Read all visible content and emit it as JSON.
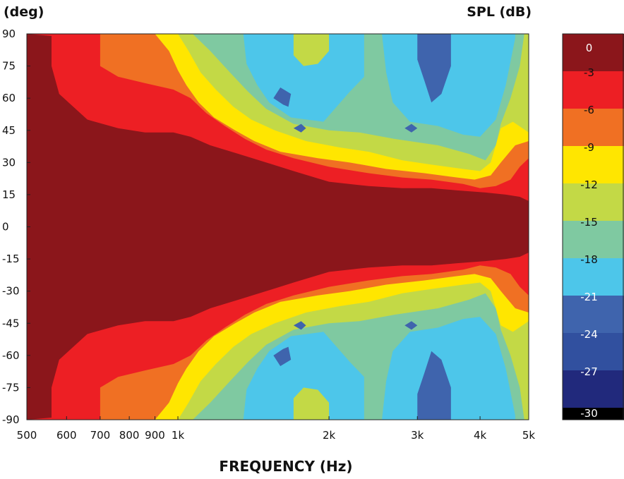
{
  "chart_data": {
    "type": "heatmap",
    "subtype": "polar-directivity-contour",
    "xlabel": "FREQUENCY (Hz)",
    "ylabel": "(deg)",
    "colorbar_title": "SPL (dB)",
    "x_scale": "log",
    "x_range_hz": [
      500,
      5000
    ],
    "x_ticks": [
      {
        "value": 500,
        "label": "500"
      },
      {
        "value": 600,
        "label": "600"
      },
      {
        "value": 700,
        "label": "700"
      },
      {
        "value": 800,
        "label": "800"
      },
      {
        "value": 900,
        "label": "900"
      },
      {
        "value": 1000,
        "label": "1k"
      },
      {
        "value": 2000,
        "label": "2k"
      },
      {
        "value": 3000,
        "label": "3k"
      },
      {
        "value": 4000,
        "label": "4k"
      },
      {
        "value": 5000,
        "label": "5k"
      }
    ],
    "y_range_deg": [
      -90,
      90
    ],
    "y_ticks": [
      {
        "value": 90,
        "label": "90"
      },
      {
        "value": 75,
        "label": "75"
      },
      {
        "value": 60,
        "label": "60"
      },
      {
        "value": 45,
        "label": "45"
      },
      {
        "value": 30,
        "label": "30"
      },
      {
        "value": 15,
        "label": "15"
      },
      {
        "value": 0,
        "label": "0"
      },
      {
        "value": -15,
        "label": "-15"
      },
      {
        "value": -30,
        "label": "-30"
      },
      {
        "value": -45,
        "label": "-45"
      },
      {
        "value": -60,
        "label": "-60"
      },
      {
        "value": -75,
        "label": "-75"
      },
      {
        "value": -90,
        "label": "-90"
      }
    ],
    "levels": [
      {
        "label": "0",
        "color": "#8b161b"
      },
      {
        "label": "-3",
        "color": "#ed1f24"
      },
      {
        "label": "-6",
        "color": "#f07023"
      },
      {
        "label": "-9",
        "color": "#ffe600"
      },
      {
        "label": "-12",
        "color": "#c3d946"
      },
      {
        "label": "-15",
        "color": "#7fc9a1"
      },
      {
        "label": "-18",
        "color": "#4dc6ea"
      },
      {
        "label": "-21",
        "color": "#3f64ad"
      },
      {
        "label": "-24",
        "color": "#31509f"
      },
      {
        "label": "-27",
        "color": "#21297c"
      },
      {
        "label": "-30",
        "color": "#000000"
      }
    ],
    "contours": [
      {
        "level": "-3",
        "points": [
          [
            500,
            90
          ],
          [
            560,
            89
          ],
          [
            560,
            75
          ],
          [
            580,
            62
          ],
          [
            660,
            50
          ],
          [
            760,
            46
          ],
          [
            860,
            44
          ],
          [
            980,
            44
          ],
          [
            1060,
            42
          ],
          [
            1160,
            38
          ],
          [
            1320,
            34
          ],
          [
            1500,
            30
          ],
          [
            1700,
            26
          ],
          [
            2000,
            21
          ],
          [
            2400,
            19
          ],
          [
            2800,
            18
          ],
          [
            3200,
            18
          ],
          [
            3600,
            17
          ],
          [
            4100,
            16
          ],
          [
            4500,
            15
          ],
          [
            4800,
            14
          ],
          [
            5000,
            12
          ]
        ]
      },
      {
        "level": "-6",
        "points": [
          [
            700,
            90
          ],
          [
            700,
            75
          ],
          [
            760,
            70
          ],
          [
            860,
            67
          ],
          [
            980,
            64
          ],
          [
            1060,
            60
          ],
          [
            1140,
            53
          ],
          [
            1240,
            47
          ],
          [
            1360,
            41
          ],
          [
            1500,
            36
          ],
          [
            1700,
            32
          ],
          [
            2000,
            28
          ],
          [
            2400,
            25
          ],
          [
            2800,
            23
          ],
          [
            3200,
            22
          ],
          [
            3700,
            20
          ],
          [
            4000,
            18
          ],
          [
            4300,
            19
          ],
          [
            4600,
            22
          ],
          [
            4800,
            28
          ],
          [
            5000,
            32
          ]
        ]
      },
      {
        "level": "-9",
        "points": [
          [
            900,
            90
          ],
          [
            960,
            82
          ],
          [
            1000,
            73
          ],
          [
            1040,
            66
          ],
          [
            1100,
            58
          ],
          [
            1180,
            51
          ],
          [
            1300,
            45
          ],
          [
            1420,
            40
          ],
          [
            1600,
            35
          ],
          [
            1900,
            32
          ],
          [
            2200,
            30
          ],
          [
            2600,
            27
          ],
          [
            3100,
            25
          ],
          [
            3600,
            23
          ],
          [
            3900,
            22
          ],
          [
            4200,
            24
          ],
          [
            4400,
            30
          ],
          [
            4700,
            38
          ],
          [
            5000,
            40
          ]
        ]
      },
      {
        "level": "-12",
        "points": [
          [
            1000,
            90
          ],
          [
            1050,
            82
          ],
          [
            1110,
            72
          ],
          [
            1190,
            64
          ],
          [
            1290,
            56
          ],
          [
            1400,
            50
          ],
          [
            1560,
            45
          ],
          [
            1800,
            40
          ],
          [
            2100,
            37
          ],
          [
            2400,
            35
          ],
          [
            2800,
            31
          ],
          [
            3200,
            29
          ],
          [
            3700,
            27
          ],
          [
            4000,
            26
          ],
          [
            4200,
            30
          ],
          [
            4400,
            46
          ],
          [
            4650,
            49
          ],
          [
            5000,
            44
          ]
        ]
      },
      {
        "level": "-15",
        "points": [
          [
            1070,
            90
          ],
          [
            1160,
            82
          ],
          [
            1270,
            72
          ],
          [
            1380,
            63
          ],
          [
            1500,
            55
          ],
          [
            1700,
            48
          ],
          [
            2000,
            45
          ],
          [
            2300,
            44
          ],
          [
            2700,
            41
          ],
          [
            3300,
            38
          ],
          [
            3800,
            34
          ],
          [
            4100,
            31
          ],
          [
            4300,
            38
          ],
          [
            4400,
            48
          ],
          [
            4600,
            60
          ],
          [
            4800,
            75
          ],
          [
            4900,
            90
          ]
        ]
      },
      {
        "level": "-18",
        "points": [
          [
            1350,
            90
          ],
          [
            1370,
            76
          ],
          [
            1440,
            66
          ],
          [
            1520,
            58
          ],
          [
            1680,
            51
          ],
          [
            1950,
            49
          ],
          [
            2200,
            63
          ],
          [
            2350,
            70
          ],
          [
            2350,
            90
          ],
          [
            2550,
            90
          ],
          [
            2600,
            72
          ],
          [
            2680,
            58
          ],
          [
            2900,
            49
          ],
          [
            3300,
            47
          ],
          [
            3700,
            43
          ],
          [
            4000,
            42
          ],
          [
            4300,
            50
          ],
          [
            4500,
            66
          ],
          [
            4700,
            88
          ],
          [
            4700,
            90
          ]
        ]
      },
      {
        "level": "-21",
        "points": [
          [
            3000,
            90
          ],
          [
            3000,
            78
          ],
          [
            3100,
            68
          ],
          [
            3200,
            58
          ],
          [
            3350,
            62
          ],
          [
            3500,
            75
          ],
          [
            3500,
            90
          ]
        ]
      }
    ],
    "islands": [
      {
        "level": "-12",
        "points": [
          [
            1700,
            90
          ],
          [
            1700,
            80
          ],
          [
            1780,
            75
          ],
          [
            1900,
            76
          ],
          [
            2000,
            82
          ],
          [
            2000,
            90
          ]
        ]
      },
      {
        "level": "-21",
        "points": [
          [
            1550,
            60
          ],
          [
            1600,
            65
          ],
          [
            1680,
            62
          ],
          [
            1660,
            56
          ],
          [
            1620,
            57
          ]
        ]
      },
      {
        "level": "-21",
        "points": [
          [
            1700,
            46
          ],
          [
            1760,
            48
          ],
          [
            1800,
            46
          ],
          [
            1760,
            44
          ]
        ]
      },
      {
        "level": "-21",
        "points": [
          [
            2830,
            46
          ],
          [
            2920,
            48
          ],
          [
            3000,
            46
          ],
          [
            2920,
            44
          ]
        ]
      }
    ],
    "symmetric": true
  }
}
